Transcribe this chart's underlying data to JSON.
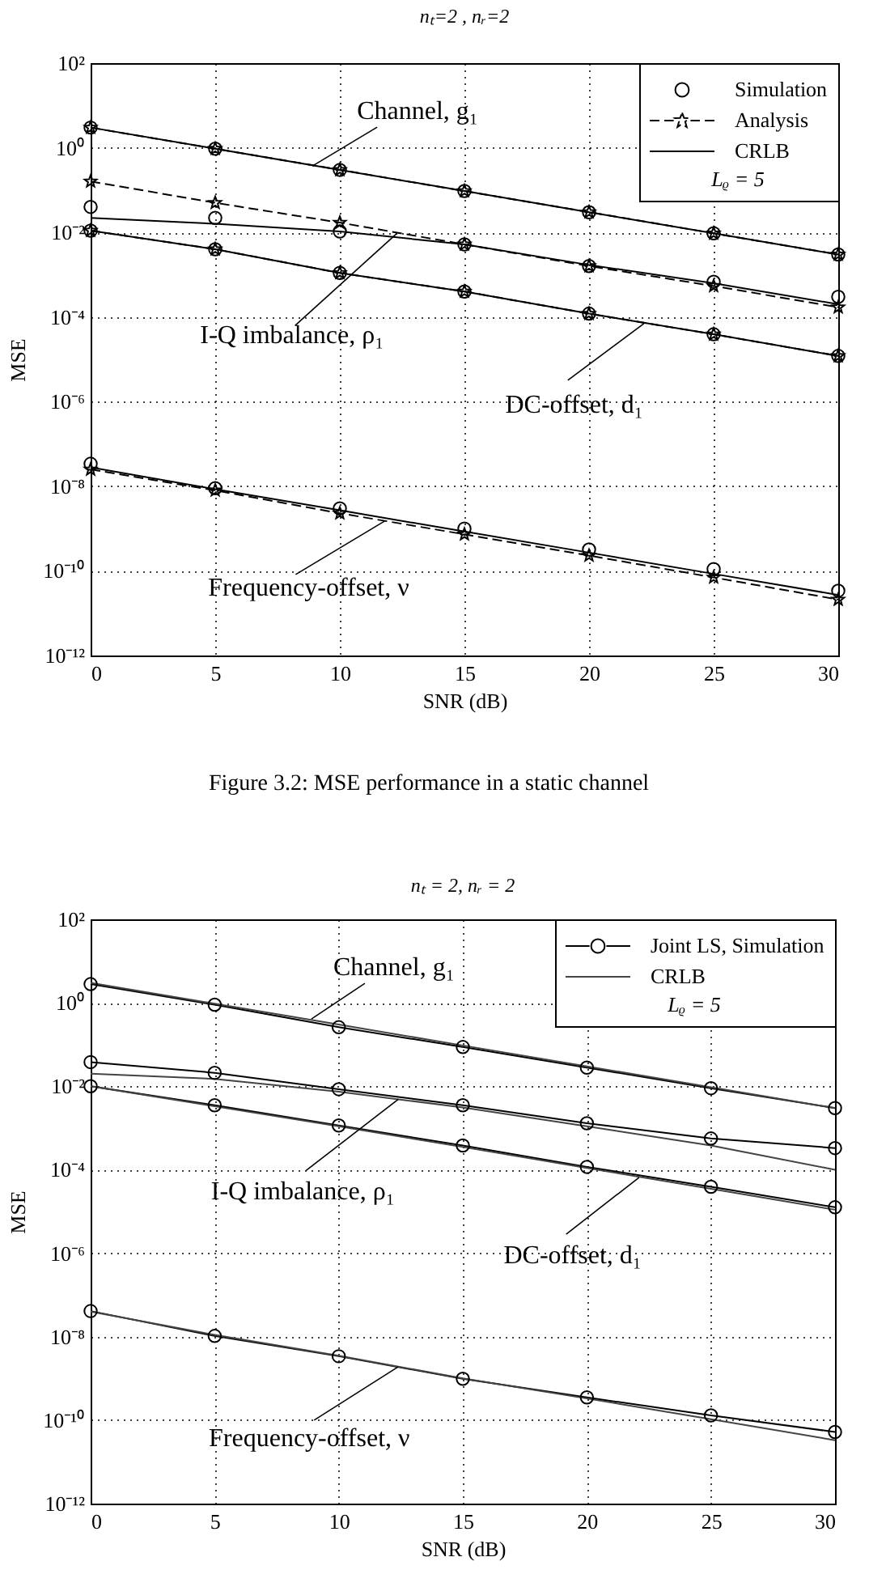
{
  "chart_data": [
    {
      "type": "line",
      "title": "nₜ=2 , nᵣ=2",
      "xlabel": "SNR (dB)",
      "ylabel": "MSE",
      "legend_title": "Lᵨ = 5",
      "legend": "top right",
      "grid": true,
      "log": true,
      "x": [
        0,
        5,
        10,
        15,
        20,
        25,
        30
      ],
      "xlim": [
        0,
        30
      ],
      "xticks": [
        0,
        5,
        10,
        15,
        20,
        25,
        30
      ],
      "ylim": [
        1e-12,
        100
      ],
      "yticks": [
        {
          "value": 1e-12,
          "label": "10⁻¹²"
        },
        {
          "value": 1e-10,
          "label": "10⁻¹⁰"
        },
        {
          "value": 1e-08,
          "label": "10⁻⁸"
        },
        {
          "value": 1e-06,
          "label": "10⁻⁶"
        },
        {
          "value": 0.0001,
          "label": "10⁻⁴"
        },
        {
          "value": 0.01,
          "label": "10⁻²"
        },
        {
          "value": 1,
          "label": "10⁰"
        },
        {
          "value": 100,
          "label": "10²"
        }
      ],
      "series": [
        {
          "name": "Simulation",
          "type": "scatter",
          "marker": "circle",
          "color": "#000000",
          "values": [
            3,
            0.95,
            0.3,
            0.095,
            0.03,
            0.0095,
            0.003
          ]
        },
        {
          "type": "scatter",
          "marker": "circle",
          "color": "#000000",
          "values": [
            0.04,
            0.022,
            0.0105,
            0.0052,
            0.0016,
            0.00068,
            0.0003
          ]
        },
        {
          "type": "scatter",
          "marker": "circle",
          "color": "#000000",
          "values": [
            0.011,
            0.004,
            0.0011,
            0.0004,
            0.00012,
            3.9e-05,
            1.2e-05
          ]
        },
        {
          "type": "scatter",
          "marker": "circle",
          "color": "#000000",
          "values": [
            3.4e-08,
            9e-09,
            3e-09,
            1e-09,
            3.2e-10,
            1.1e-10,
            3.4e-11
          ]
        },
        {
          "name": "Analysis",
          "line_style": "dashed",
          "marker": "star",
          "color": "#000000",
          "values": [
            3,
            0.95,
            0.3,
            0.095,
            0.03,
            0.0095,
            0.003
          ]
        },
        {
          "line_style": "dashed",
          "marker": "star",
          "color": "#000000",
          "values": [
            0.16,
            0.05,
            0.017,
            0.0052,
            0.0016,
            0.00054,
            0.00017
          ]
        },
        {
          "line_style": "dashed",
          "marker": "star",
          "color": "#000000",
          "values": [
            0.011,
            0.004,
            0.0011,
            0.0004,
            0.00012,
            3.9e-05,
            1.2e-05
          ]
        },
        {
          "line_style": "dashed",
          "marker": "star",
          "color": "#000000",
          "values": [
            2.5e-08,
            8e-09,
            2.3e-09,
            7.3e-10,
            2.3e-10,
            7e-11,
            2.1e-11
          ]
        },
        {
          "name": "CRLB",
          "line_style": "solid",
          "color": "#000000",
          "values": [
            3,
            0.95,
            0.3,
            0.095,
            0.03,
            0.0095,
            0.003
          ]
        },
        {
          "line_style": "solid",
          "color": "#000000",
          "values": [
            0.022,
            0.016,
            0.0105,
            0.0052,
            0.0017,
            0.00063,
            0.0002
          ]
        },
        {
          "line_style": "solid",
          "color": "#000000",
          "values": [
            0.011,
            0.004,
            0.0011,
            0.0004,
            0.00012,
            3.9e-05,
            1.2e-05
          ]
        },
        {
          "line_style": "solid",
          "color": "#000000",
          "values": [
            2.8e-08,
            8.5e-09,
            2.7e-09,
            8.5e-10,
            2.7e-10,
            8.5e-11,
            2.7e-11
          ]
        }
      ],
      "annotations": [
        {
          "text": "Channel, g₁",
          "x": 8.9,
          "y": 0.37
        },
        {
          "text": "I-Q imbalance, ρ₁",
          "x": 12.3,
          "y": 0.0096
        },
        {
          "text": "DC-offset, d₁",
          "x": 22.2,
          "y": 7e-05
        },
        {
          "text": "Frequency-offset, ν",
          "x": 11.8,
          "y": 1.5e-09
        },
        "Figure 3.2: MSE performance in a static channel"
      ]
    },
    {
      "type": "line",
      "title": "nₜ = 2, nᵣ = 2",
      "xlabel": "SNR (dB)",
      "ylabel": "MSE",
      "legend_title": "Lᵨ = 5",
      "legend": "top right",
      "grid": true,
      "log": true,
      "x": [
        0,
        5,
        10,
        15,
        20,
        25,
        30
      ],
      "xlim": [
        0,
        30
      ],
      "xticks": [
        0,
        5,
        10,
        15,
        20,
        25,
        30
      ],
      "ylim": [
        1e-12,
        100
      ],
      "yticks": [
        {
          "value": 1e-12,
          "label": "10⁻¹²"
        },
        {
          "value": 1e-10,
          "label": "10⁻¹⁰"
        },
        {
          "value": 1e-08,
          "label": "10⁻⁸"
        },
        {
          "value": 1e-06,
          "label": "10⁻⁶"
        },
        {
          "value": 0.0001,
          "label": "10⁻⁴"
        },
        {
          "value": 0.01,
          "label": "10⁻²"
        },
        {
          "value": 1,
          "label": "10⁰"
        },
        {
          "value": 100,
          "label": "10²"
        }
      ],
      "series": [
        {
          "name": "Joint LS, Simulation",
          "line_style": "solid",
          "marker": "circle",
          "color": "#000000",
          "values": [
            2.8,
            0.9,
            0.26,
            0.087,
            0.028,
            0.009,
            0.003
          ]
        },
        {
          "line_style": "solid",
          "marker": "circle",
          "color": "#000000",
          "values": [
            0.038,
            0.021,
            0.0085,
            0.0035,
            0.0013,
            0.00056,
            0.00033
          ]
        },
        {
          "line_style": "solid",
          "marker": "circle",
          "color": "#000000",
          "values": [
            0.01,
            0.0035,
            0.00115,
            0.00038,
            0.000117,
            3.9e-05,
            1.26e-05
          ]
        },
        {
          "line_style": "solid",
          "marker": "circle",
          "color": "#000000",
          "values": [
            4.1e-08,
            1.04e-08,
            3.4e-09,
            9.8e-10,
            3.5e-10,
            1.3e-10,
            5.2e-11
          ]
        },
        {
          "name": "CRLB",
          "line_style": "solid",
          "color": "#444444",
          "values": [
            3,
            0.95,
            0.3,
            0.095,
            0.03,
            0.0095,
            0.003
          ]
        },
        {
          "line_style": "solid",
          "color": "#444444",
          "values": [
            0.02,
            0.015,
            0.0074,
            0.0031,
            0.0011,
            0.00038,
            0.0001
          ]
        },
        {
          "line_style": "solid",
          "color": "#444444",
          "values": [
            0.01,
            0.0033,
            0.0011,
            0.00035,
            0.00011,
            3.5e-05,
            1.1e-05
          ]
        },
        {
          "line_style": "solid",
          "color": "#444444",
          "values": [
            4e-08,
            1.1e-08,
            3.5e-09,
            1e-09,
            3.3e-10,
            1.05e-10,
            3.3e-11
          ]
        }
      ],
      "annotations": [
        {
          "text": "Channel, g₁",
          "x": 8.9,
          "y": 0.41
        },
        {
          "text": "I-Q imbalance, ρ₁",
          "x": 12.4,
          "y": 0.0049
        },
        {
          "text": "DC-offset, d₁",
          "x": 22.1,
          "y": 6.5e-05
        },
        {
          "text": "Frequency-offset, ν",
          "x": 12.4,
          "y": 1.9e-09
        }
      ]
    }
  ]
}
